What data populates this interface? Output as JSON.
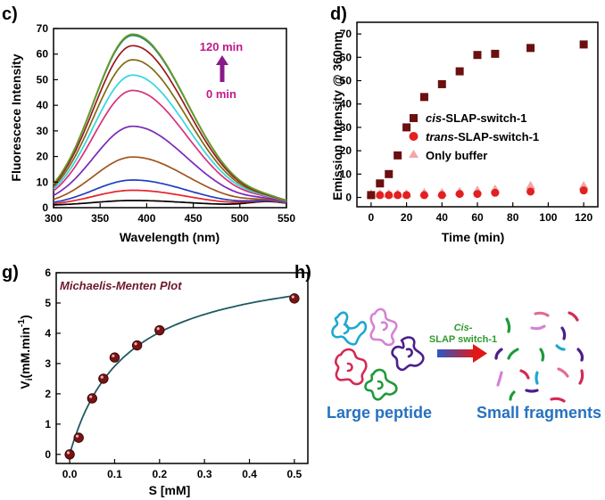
{
  "panel_labels": {
    "c": "c)",
    "d": "d)",
    "g": "g)",
    "h": "h)"
  },
  "chart_data": [
    {
      "panel": "c",
      "type": "line",
      "title": "",
      "xlabel": "Wavelength (nm)",
      "ylabel": "Fluorescece Intensity",
      "xlim": [
        300,
        550
      ],
      "ylim": [
        0,
        70
      ],
      "xticks": [
        300,
        350,
        400,
        450,
        500,
        550
      ],
      "yticks": [
        0,
        10,
        20,
        30,
        40,
        50,
        60,
        70
      ],
      "annotation_top": "120 min",
      "annotation_bottom": "0 min",
      "annotation_color": "#c2188b",
      "peak_wavelength": 385,
      "series": [
        {
          "name": "0 min",
          "color": "#000000",
          "peak": 2
        },
        {
          "name": "red",
          "color": "#e8222a",
          "peak": 6
        },
        {
          "name": "blue",
          "color": "#1f3fbf",
          "peak": 10
        },
        {
          "name": "brown",
          "color": "#a0541c",
          "peak": 19
        },
        {
          "name": "purple",
          "color": "#7a28b8",
          "peak": 31
        },
        {
          "name": "magenta",
          "color": "#d8307a",
          "peak": 45
        },
        {
          "name": "cyan",
          "color": "#35d4e2",
          "peak": 51
        },
        {
          "name": "olive",
          "color": "#7d6c12",
          "peak": 57
        },
        {
          "name": "darkred",
          "color": "#9a1a1a",
          "peak": 62.5
        },
        {
          "name": "teal",
          "color": "#14897a",
          "peak": 66.5
        },
        {
          "name": "120 min",
          "color": "#6e9a24",
          "peak": 67
        }
      ]
    },
    {
      "panel": "d",
      "type": "scatter",
      "title": "",
      "xlabel": "Time (min)",
      "ylabel": "Emission Intensity @ 360nm",
      "xlim": [
        -8,
        128
      ],
      "ylim": [
        -4,
        75
      ],
      "xticks": [
        0,
        20,
        40,
        60,
        80,
        100,
        120
      ],
      "yticks": [
        0,
        10,
        20,
        30,
        40,
        50,
        60,
        70
      ],
      "legend_position": "center-right",
      "series": [
        {
          "name_italic": "cis",
          "name_rest": "-SLAP-switch-1",
          "marker": "square",
          "color": "#6b0f0f",
          "x": [
            0,
            5,
            10,
            15,
            20,
            30,
            40,
            50,
            60,
            70,
            90,
            120
          ],
          "y": [
            1,
            6,
            10,
            18,
            30,
            43,
            48.5,
            54,
            61,
            61.5,
            64,
            65.5
          ]
        },
        {
          "name_italic": "trans",
          "name_rest": "-SLAP-switch-1",
          "marker": "circle",
          "color": "#e32020",
          "x": [
            0,
            5,
            10,
            15,
            20,
            30,
            40,
            50,
            60,
            70,
            90,
            120
          ],
          "y": [
            1,
            1,
            1,
            1,
            1,
            1,
            1,
            1.5,
            1.5,
            2,
            2.5,
            3
          ]
        },
        {
          "name_italic": "",
          "name_rest": "Only buffer",
          "marker": "triangle",
          "color": "#f2a6a6",
          "x": [
            0,
            5,
            10,
            15,
            20,
            30,
            40,
            50,
            60,
            70,
            90,
            120
          ],
          "y": [
            1.5,
            1.5,
            1.5,
            1.5,
            1.5,
            2,
            2,
            2.5,
            3,
            3.5,
            5,
            5
          ]
        }
      ]
    },
    {
      "panel": "g",
      "type": "scatter",
      "title": "Michaelis-Menten Plot",
      "xlabel": "S [mM]",
      "ylabel_main": "V",
      "ylabel_sub": "i",
      "ylabel_rest": "(mM.min",
      "ylabel_sup": "-1",
      "ylabel_end": ")",
      "xlim": [
        -0.03,
        0.53
      ],
      "ylim": [
        -0.3,
        6
      ],
      "xticks": [
        0.0,
        0.1,
        0.2,
        0.3,
        0.4,
        0.5
      ],
      "yticks": [
        0,
        1,
        2,
        3,
        4,
        5,
        6
      ],
      "point_color": "#7a1414",
      "fit_color": "#1f5a63",
      "fit": {
        "vmax": 6.55,
        "km": 0.125
      },
      "x": [
        0,
        0.02,
        0.05,
        0.075,
        0.1,
        0.15,
        0.2,
        0.5
      ],
      "y": [
        0,
        0.55,
        1.85,
        2.5,
        3.2,
        3.6,
        4.1,
        5.15
      ]
    }
  ],
  "diagram_h": {
    "arrow_label_line1": "Cis-",
    "arrow_label_line2": "SLAP switch-1",
    "arrow_label_color": "#2e9a2e",
    "left_caption": "Large peptide",
    "right_caption": "Small fragments",
    "caption_color": "#2672c0",
    "peptide_colors": [
      "#1ea8d2",
      "#d583d4",
      "#d42a55",
      "#4b1f8c",
      "#1e9a3a"
    ],
    "fragment_colors": [
      "#1e9a3a",
      "#e36a9a",
      "#d42a55",
      "#4b1f8c",
      "#1ea8d2",
      "#d583d4"
    ]
  }
}
